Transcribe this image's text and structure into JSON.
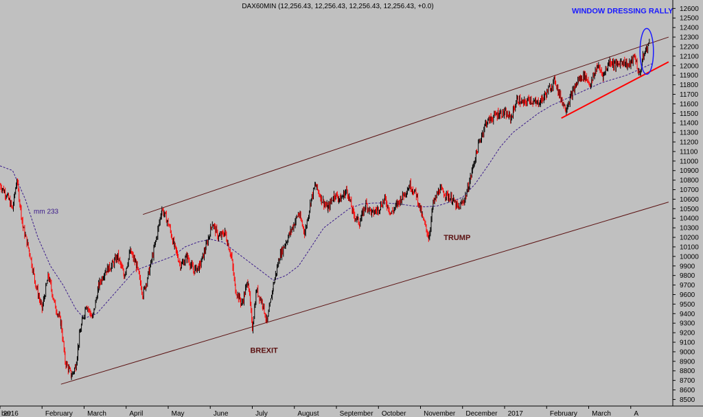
{
  "chart_data": {
    "type": "line",
    "title": "DAX60MIN (12,256.43, 12,256.43, 12,256.43, 12,256.43, +0.0)",
    "xlabel": "",
    "ylabel": "",
    "ylim": [
      8460,
      12660
    ],
    "yticks": [
      8500,
      8600,
      8700,
      8800,
      8900,
      9000,
      9100,
      9200,
      9300,
      9400,
      9500,
      9600,
      9700,
      9800,
      9900,
      10000,
      10100,
      10200,
      10300,
      10400,
      10500,
      10600,
      10700,
      10800,
      10900,
      11000,
      11100,
      11200,
      11300,
      11400,
      11500,
      11600,
      11700,
      11800,
      11900,
      12000,
      12100,
      12200,
      12300,
      12400,
      12500,
      12600
    ],
    "ytick_labels": [
      "8500",
      "8600",
      "8700",
      "8800",
      "8900",
      "9000",
      "9100",
      "9200",
      "9300",
      "9400",
      "9500",
      "9600",
      "9700",
      "9800",
      "9900",
      "10000",
      "10100",
      "10200",
      "10300",
      "10400",
      "10500",
      "10600",
      "10700",
      "10800",
      "10900",
      "11000",
      "11100",
      "11200",
      "11300",
      "11400",
      "11500",
      "11600",
      "11700",
      "11800",
      "11900",
      "12000",
      "12100",
      "12200",
      "12300",
      "12400",
      "12500",
      "12600"
    ],
    "x_domain": [
      0,
      16
    ],
    "month_ticks": [
      {
        "x": 0.0,
        "label": "ber"
      },
      {
        "x": 0.5,
        "label": "2016"
      },
      {
        "x": 1.5,
        "label": "February"
      },
      {
        "x": 2.5,
        "label": "March"
      },
      {
        "x": 3.5,
        "label": "April"
      },
      {
        "x": 4.5,
        "label": "May"
      },
      {
        "x": 5.5,
        "label": "June"
      },
      {
        "x": 6.5,
        "label": "July"
      },
      {
        "x": 7.5,
        "label": "August"
      },
      {
        "x": 8.5,
        "label": "September"
      },
      {
        "x": 9.5,
        "label": "October"
      },
      {
        "x": 10.5,
        "label": "November"
      },
      {
        "x": 11.5,
        "label": "December"
      },
      {
        "x": 12.5,
        "label": "2017"
      },
      {
        "x": 13.5,
        "label": "February"
      },
      {
        "x": 14.5,
        "label": "March"
      },
      {
        "x": 15.5,
        "label": "A"
      }
    ],
    "price_series": {
      "name": "",
      "points": [
        [
          0.0,
          10750
        ],
        [
          0.15,
          10650
        ],
        [
          0.3,
          10500
        ],
        [
          0.4,
          10800
        ],
        [
          0.55,
          10300
        ],
        [
          0.7,
          10050
        ],
        [
          0.85,
          9700
        ],
        [
          1.0,
          9450
        ],
        [
          1.15,
          9800
        ],
        [
          1.3,
          9500
        ],
        [
          1.45,
          9300
        ],
        [
          1.55,
          8900
        ],
        [
          1.7,
          8750
        ],
        [
          1.8,
          8850
        ],
        [
          1.9,
          9200
        ],
        [
          2.05,
          9500
        ],
        [
          2.2,
          9350
        ],
        [
          2.35,
          9700
        ],
        [
          2.5,
          9850
        ],
        [
          2.65,
          9900
        ],
        [
          2.8,
          10000
        ],
        [
          2.95,
          9800
        ],
        [
          3.1,
          10050
        ],
        [
          3.25,
          9900
        ],
        [
          3.4,
          9600
        ],
        [
          3.55,
          9850
        ],
        [
          3.7,
          10150
        ],
        [
          3.85,
          10500
        ],
        [
          4.0,
          10350
        ],
        [
          4.15,
          10100
        ],
        [
          4.3,
          9900
        ],
        [
          4.45,
          10000
        ],
        [
          4.6,
          9850
        ],
        [
          4.75,
          9900
        ],
        [
          4.9,
          10100
        ],
        [
          5.05,
          10350
        ],
        [
          5.2,
          10200
        ],
        [
          5.35,
          10250
        ],
        [
          5.5,
          10000
        ],
        [
          5.6,
          9650
        ],
        [
          5.75,
          9500
        ],
        [
          5.9,
          9750
        ],
        [
          6.0,
          9250
        ],
        [
          6.1,
          9650
        ],
        [
          6.25,
          9500
        ],
        [
          6.35,
          9300
        ],
        [
          6.5,
          9700
        ],
        [
          6.65,
          10000
        ],
        [
          6.8,
          10150
        ],
        [
          6.95,
          10300
        ],
        [
          7.1,
          10450
        ],
        [
          7.25,
          10250
        ],
        [
          7.4,
          10600
        ],
        [
          7.5,
          10750
        ],
        [
          7.65,
          10600
        ],
        [
          7.8,
          10500
        ],
        [
          7.95,
          10650
        ],
        [
          8.1,
          10600
        ],
        [
          8.25,
          10700
        ],
        [
          8.4,
          10450
        ],
        [
          8.55,
          10350
        ],
        [
          8.7,
          10550
        ],
        [
          8.85,
          10450
        ],
        [
          9.0,
          10500
        ],
        [
          9.15,
          10600
        ],
        [
          9.3,
          10450
        ],
        [
          9.45,
          10550
        ],
        [
          9.6,
          10650
        ],
        [
          9.75,
          10750
        ],
        [
          9.9,
          10650
        ],
        [
          10.05,
          10400
        ],
        [
          10.2,
          10200
        ],
        [
          10.3,
          10550
        ],
        [
          10.45,
          10700
        ],
        [
          10.6,
          10650
        ],
        [
          10.75,
          10600
        ],
        [
          10.9,
          10500
        ],
        [
          11.05,
          10600
        ],
        [
          11.15,
          10750
        ],
        [
          11.25,
          10950
        ],
        [
          11.4,
          11200
        ],
        [
          11.55,
          11400
        ],
        [
          11.7,
          11450
        ],
        [
          11.85,
          11500
        ],
        [
          12.0,
          11500
        ],
        [
          12.15,
          11450
        ],
        [
          12.3,
          11650
        ],
        [
          12.45,
          11600
        ],
        [
          12.6,
          11650
        ],
        [
          12.75,
          11600
        ],
        [
          12.9,
          11650
        ],
        [
          13.05,
          11750
        ],
        [
          13.2,
          11850
        ],
        [
          13.3,
          11700
        ],
        [
          13.45,
          11550
        ],
        [
          13.6,
          11700
        ],
        [
          13.75,
          11850
        ],
        [
          13.9,
          11900
        ],
        [
          14.05,
          11800
        ],
        [
          14.2,
          12000
        ],
        [
          14.35,
          11900
        ],
        [
          14.5,
          12050
        ],
        [
          14.65,
          12000
        ],
        [
          14.8,
          12050
        ],
        [
          14.95,
          12000
        ],
        [
          15.1,
          12100
        ],
        [
          15.2,
          11900
        ],
        [
          15.3,
          12100
        ],
        [
          15.45,
          12256
        ]
      ]
    },
    "moving_average": {
      "name": "mm 233",
      "points": [
        [
          0.0,
          10950
        ],
        [
          0.3,
          10900
        ],
        [
          0.6,
          10600
        ],
        [
          0.9,
          10200
        ],
        [
          1.2,
          9900
        ],
        [
          1.5,
          9700
        ],
        [
          1.8,
          9450
        ],
        [
          2.0,
          9350
        ],
        [
          2.3,
          9400
        ],
        [
          2.6,
          9550
        ],
        [
          2.9,
          9700
        ],
        [
          3.2,
          9850
        ],
        [
          3.5,
          9900
        ],
        [
          3.8,
          9950
        ],
        [
          4.1,
          10000
        ],
        [
          4.4,
          10100
        ],
        [
          4.7,
          10150
        ],
        [
          5.0,
          10180
        ],
        [
          5.3,
          10150
        ],
        [
          5.6,
          10050
        ],
        [
          5.9,
          9950
        ],
        [
          6.2,
          9850
        ],
        [
          6.5,
          9750
        ],
        [
          6.8,
          9800
        ],
        [
          7.1,
          9900
        ],
        [
          7.4,
          10100
        ],
        [
          7.7,
          10300
        ],
        [
          8.0,
          10400
        ],
        [
          8.3,
          10500
        ],
        [
          8.6,
          10550
        ],
        [
          8.9,
          10560
        ],
        [
          9.2,
          10560
        ],
        [
          9.5,
          10550
        ],
        [
          9.8,
          10530
        ],
        [
          10.1,
          10520
        ],
        [
          10.4,
          10530
        ],
        [
          10.7,
          10570
        ],
        [
          11.0,
          10620
        ],
        [
          11.3,
          10760
        ],
        [
          11.6,
          10950
        ],
        [
          11.9,
          11150
        ],
        [
          12.2,
          11300
        ],
        [
          12.5,
          11400
        ],
        [
          12.8,
          11500
        ],
        [
          13.1,
          11580
        ],
        [
          13.4,
          11640
        ],
        [
          13.7,
          11700
        ],
        [
          14.0,
          11760
        ],
        [
          14.3,
          11820
        ],
        [
          14.6,
          11860
        ],
        [
          14.9,
          11900
        ],
        [
          15.2,
          11960
        ],
        [
          15.5,
          12020
        ]
      ]
    },
    "trendlines": [
      {
        "name": "upper-channel",
        "color": "#5a1010",
        "points": [
          [
            3.4,
            10440
          ],
          [
            15.9,
            12300
          ]
        ]
      },
      {
        "name": "lower-channel",
        "color": "#5a1010",
        "points": [
          [
            1.45,
            8660
          ],
          [
            15.9,
            10570
          ]
        ]
      },
      {
        "name": "support-line",
        "color": "#ff0000",
        "points": [
          [
            13.35,
            11450
          ],
          [
            15.9,
            12040
          ]
        ]
      }
    ],
    "ellipse": {
      "center": [
        15.38,
        12150
      ],
      "rx_months": 0.16,
      "ry_value": 240,
      "color": "#1a1aff"
    },
    "annotations": [
      {
        "label": "BREXIT",
        "x": 5.95,
        "y": 8990
      },
      {
        "label": "TRUMP",
        "x": 10.55,
        "y": 10170
      },
      {
        "label": "WINDOW DRESSING RALLY",
        "x": 13.6,
        "y": 12550
      }
    ],
    "colors": {
      "background": "#c0c0c0",
      "up": "#000000",
      "down": "#ff0000",
      "ma": "#3a1a8a",
      "annotation": "#5a1010",
      "annotation_blue": "#1a1aff"
    }
  }
}
